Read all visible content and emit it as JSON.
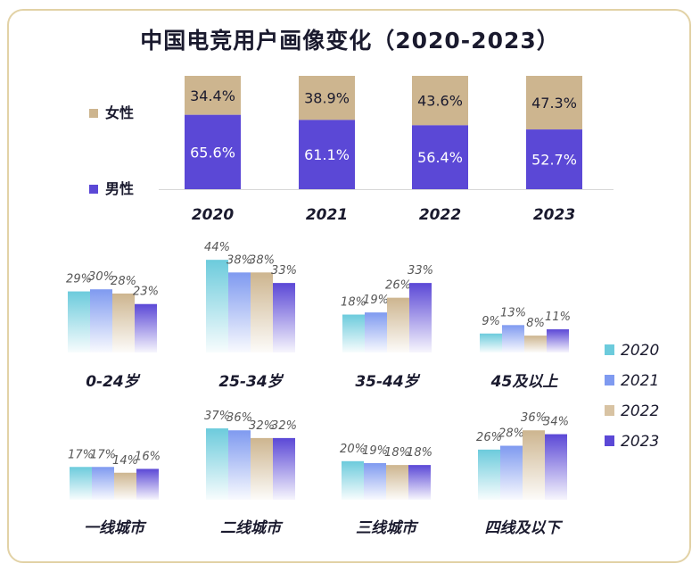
{
  "title": "中国电竞用户画像变化（2020-2023）",
  "colors": {
    "female": "#cdb58f",
    "male": "#5b48d6",
    "y2020": "#6ccbdc",
    "y2021": "#7f9af0",
    "y2022": "#d8c3a3",
    "y2023": "#5b48d6"
  },
  "chart_data": [
    {
      "type": "bar",
      "stacked": true,
      "categories": [
        "2020",
        "2021",
        "2022",
        "2023"
      ],
      "series": [
        {
          "name": "男性",
          "values": [
            65.6,
            61.1,
            56.4,
            52.7
          ],
          "labels": [
            "65.6%",
            "61.1%",
            "56.4%",
            "52.7%"
          ]
        },
        {
          "name": "女性",
          "values": [
            34.4,
            38.9,
            43.6,
            47.3
          ],
          "labels": [
            "34.4%",
            "38.9%",
            "43.6%",
            "47.3%"
          ]
        }
      ],
      "ylim": [
        0,
        100
      ],
      "legend": "left"
    },
    {
      "type": "bar",
      "categories": [
        "0-24岁",
        "25-34岁",
        "35-44岁",
        "45及以上"
      ],
      "series": [
        {
          "name": "2020",
          "values": [
            29,
            44,
            18,
            9
          ],
          "labels": [
            "29%",
            "44%",
            "18%",
            "9%"
          ]
        },
        {
          "name": "2021",
          "values": [
            30,
            38,
            19,
            13
          ],
          "labels": [
            "30%",
            "38%",
            "19%",
            "13%"
          ]
        },
        {
          "name": "2022",
          "values": [
            28,
            38,
            26,
            8
          ],
          "labels": [
            "28%",
            "38%",
            "26%",
            "8%"
          ]
        },
        {
          "name": "2023",
          "values": [
            23,
            33,
            33,
            11
          ],
          "labels": [
            "23%",
            "33%",
            "33%",
            "11%"
          ]
        }
      ],
      "ylim": [
        0,
        50
      ],
      "legend": "right"
    },
    {
      "type": "bar",
      "categories": [
        "一线城市",
        "二线城市",
        "三线城市",
        "四线及以下"
      ],
      "series": [
        {
          "name": "2020",
          "values": [
            17,
            37,
            20,
            26
          ],
          "labels": [
            "17%",
            "37%",
            "20%",
            "26%"
          ]
        },
        {
          "name": "2021",
          "values": [
            17,
            36,
            19,
            28
          ],
          "labels": [
            "17%",
            "36%",
            "19%",
            "28%"
          ]
        },
        {
          "name": "2022",
          "values": [
            14,
            32,
            18,
            36
          ],
          "labels": [
            "14%",
            "32%",
            "18%",
            "36%"
          ]
        },
        {
          "name": "2023",
          "values": [
            16,
            32,
            18,
            34
          ],
          "labels": [
            "16%",
            "32%",
            "18%",
            "34%"
          ]
        }
      ],
      "ylim": [
        0,
        40
      ],
      "legend": "right"
    }
  ]
}
